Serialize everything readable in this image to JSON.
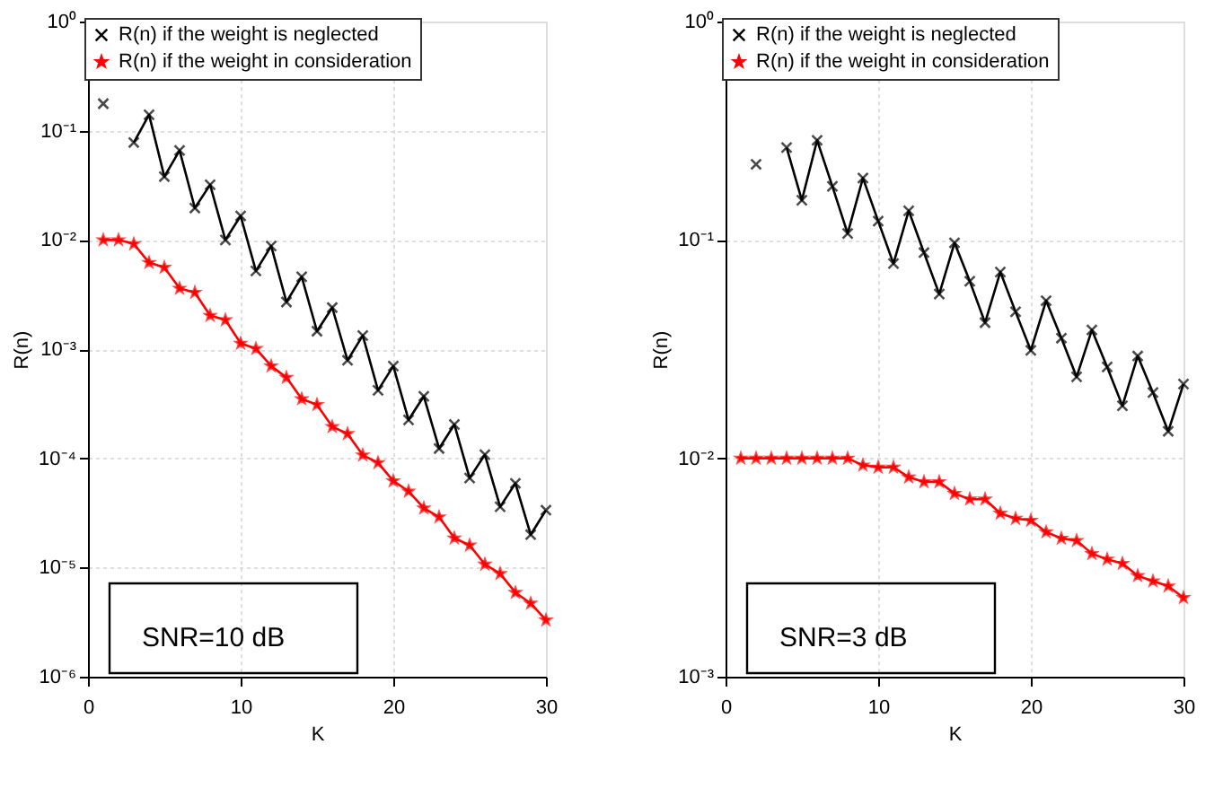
{
  "chart_data": [
    {
      "type": "line",
      "xlabel": "K",
      "ylabel": "R(n)",
      "log": "y",
      "grid": true,
      "legend": "top",
      "x": [
        1,
        2,
        3,
        4,
        5,
        6,
        7,
        8,
        9,
        10,
        11,
        12,
        13,
        14,
        15,
        16,
        17,
        18,
        19,
        20,
        21,
        22,
        23,
        24,
        25,
        26,
        27,
        28,
        29,
        30
      ],
      "xlim": [
        0,
        30
      ],
      "xticks": [
        0,
        10,
        20,
        30
      ],
      "ylim": [
        1e-06,
        1
      ],
      "yticks": [
        {
          "value": 1e-06,
          "label": "10⁻⁶"
        },
        {
          "value": 1e-05,
          "label": "10⁻⁵"
        },
        {
          "value": 0.0001,
          "label": "10⁻⁴"
        },
        {
          "value": 0.001,
          "label": "10⁻³"
        },
        {
          "value": 0.01,
          "label": "10⁻²"
        },
        {
          "value": 0.1,
          "label": "10⁻¹"
        },
        {
          "value": 1,
          "label": "10⁰"
        }
      ],
      "series": [
        {
          "name": "R(n) if the weight is neglected",
          "color": "#000000",
          "marker": "cross",
          "values": [
            0.177,
            null,
            0.078,
            0.14,
            0.038,
            0.066,
            0.0196,
            0.032,
            0.01,
            0.0166,
            0.0052,
            0.0088,
            0.0027,
            0.0046,
            0.00146,
            0.0024,
            0.00079,
            0.00133,
            0.00042,
            0.0007,
            0.000225,
            0.00037,
            0.000123,
            0.000204,
            6.6e-05,
            0.000108,
            3.6e-05,
            5.9e-05,
            2e-05,
            3.35e-05
          ]
        },
        {
          "name": "R(n) if the weight in consideration",
          "color": "#ff0000",
          "marker": "star",
          "values": [
            0.01,
            0.01,
            0.0092,
            0.0062,
            0.0056,
            0.0036,
            0.0033,
            0.00203,
            0.00185,
            0.00113,
            0.00101,
            0.0007,
            0.00055,
            0.00035,
            0.00031,
            0.000195,
            0.000168,
            0.000107,
            9.1e-05,
            6.2e-05,
            5e-05,
            3.5e-05,
            2.9e-05,
            1.86e-05,
            1.6e-05,
            1.07e-05,
            8.8e-06,
            5.9e-06,
            4.7e-06,
            3.3e-06
          ]
        }
      ],
      "annotations": [
        "SNR=10 dB"
      ]
    },
    {
      "type": "line",
      "xlabel": "K",
      "ylabel": "R(n)",
      "log": "y",
      "grid": true,
      "legend": "top",
      "x": [
        1,
        2,
        3,
        4,
        5,
        6,
        7,
        8,
        9,
        10,
        11,
        12,
        13,
        14,
        15,
        16,
        17,
        18,
        19,
        20,
        21,
        22,
        23,
        24,
        25,
        26,
        27,
        28,
        29,
        30
      ],
      "xlim": [
        0,
        30
      ],
      "xticks": [
        0,
        10,
        20,
        30
      ],
      "ylim": [
        0.001,
        1
      ],
      "yticks": [
        {
          "value": 0.001,
          "label": "10⁻³"
        },
        {
          "value": 0.01,
          "label": "10⁻²"
        },
        {
          "value": 0.1,
          "label": "10⁻¹"
        },
        {
          "value": 1,
          "label": "10⁰"
        }
      ],
      "series": [
        {
          "name": "R(n) if the weight is neglected",
          "color": "#000000",
          "marker": "cross",
          "values": [
            null,
            0.222,
            null,
            0.265,
            0.152,
            0.286,
            0.176,
            0.107,
            0.192,
            0.122,
            0.078,
            0.136,
            0.0875,
            0.0565,
            0.097,
            0.0647,
            0.0418,
            0.0713,
            0.0469,
            0.0312,
            0.0527,
            0.0355,
            0.0236,
            0.0387,
            0.0262,
            0.0174,
            0.0294,
            0.02,
            0.0133,
            0.0219
          ]
        },
        {
          "name": "R(n) if the weight in consideration",
          "color": "#ff0000",
          "marker": "star",
          "values": [
            0.01,
            0.01,
            0.01,
            0.01,
            0.01,
            0.01,
            0.01,
            0.01,
            0.0093,
            0.0091,
            0.0091,
            0.0082,
            0.0078,
            0.0078,
            0.0069,
            0.0065,
            0.0065,
            0.0056,
            0.0053,
            0.0052,
            0.0046,
            0.0043,
            0.0042,
            0.00366,
            0.00345,
            0.0033,
            0.0029,
            0.00274,
            0.0026,
            0.0023
          ]
        }
      ],
      "annotations": [
        "SNR=3 dB"
      ]
    }
  ]
}
